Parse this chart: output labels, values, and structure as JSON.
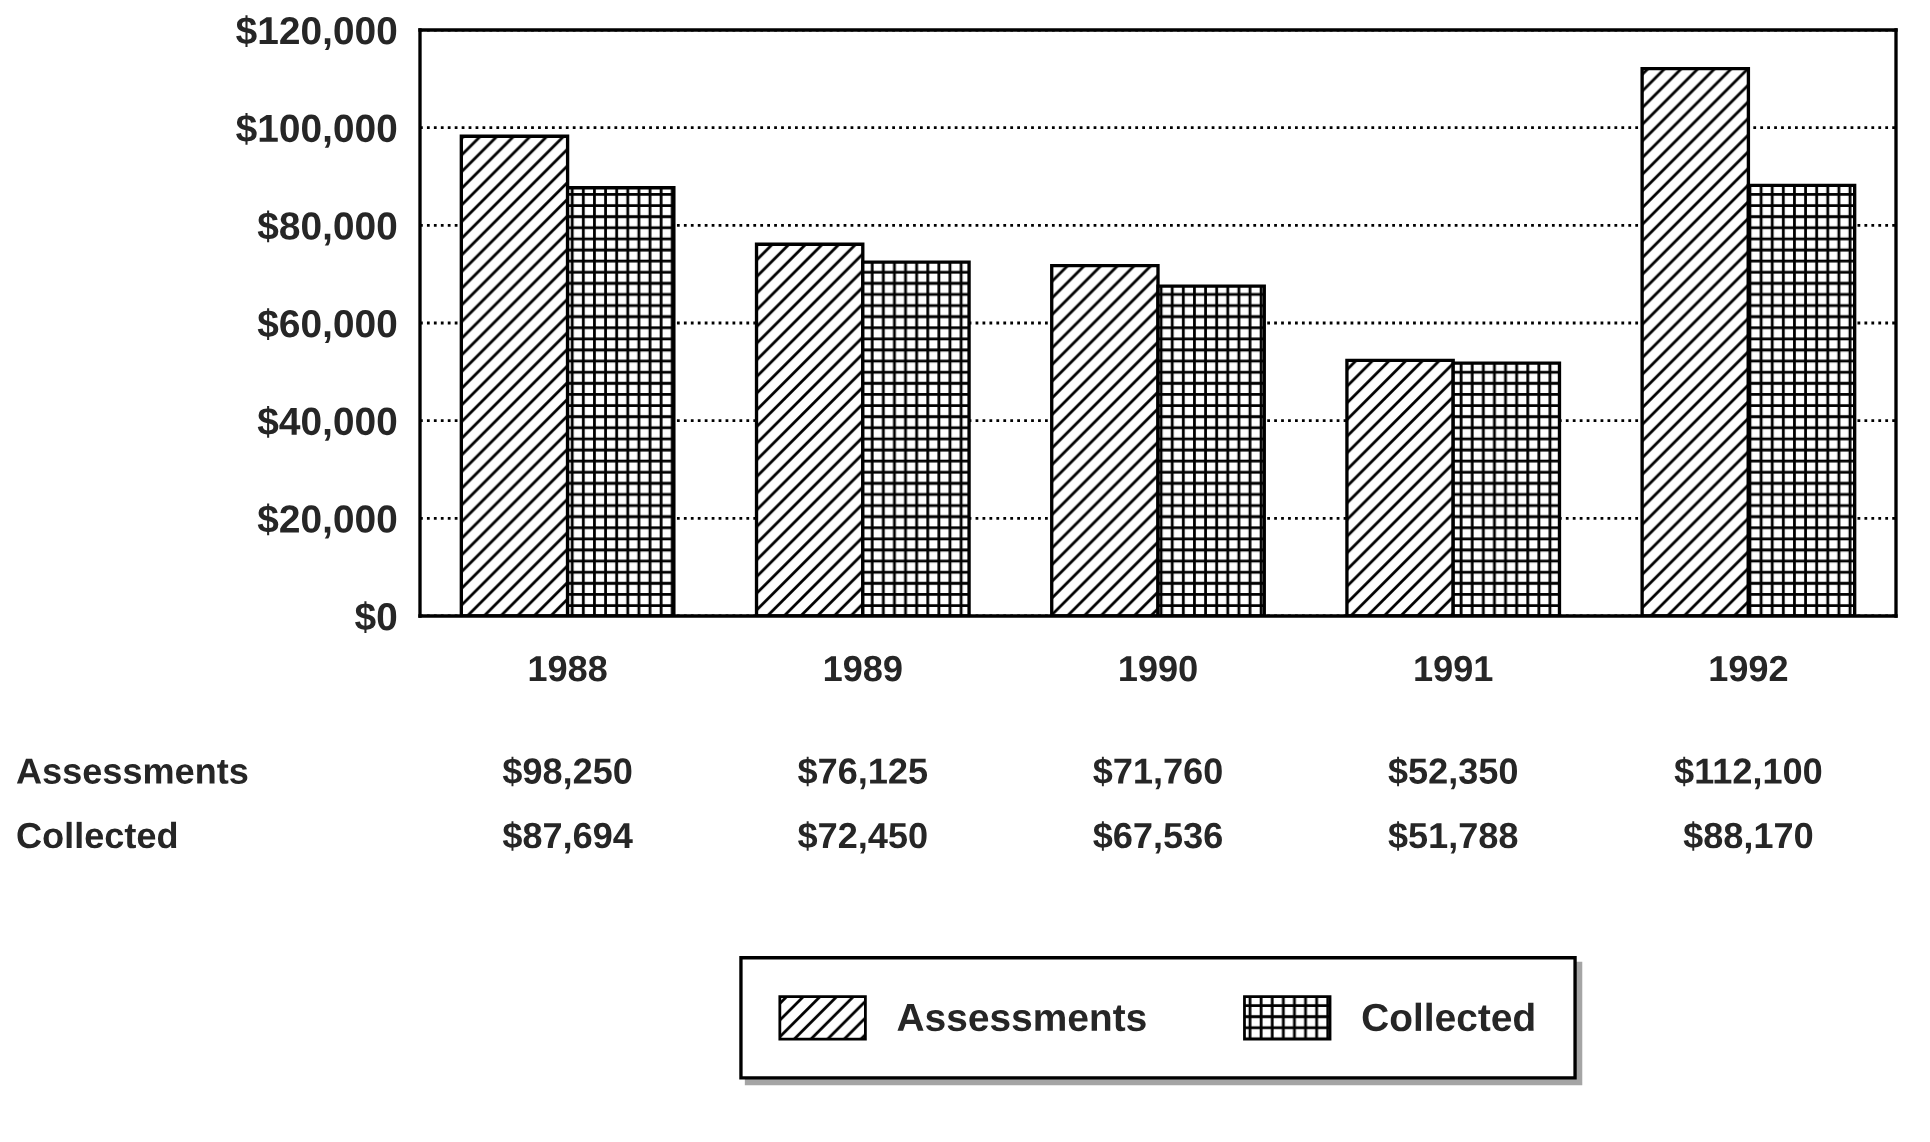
{
  "chart_data": {
    "type": "bar",
    "categories": [
      "1988",
      "1989",
      "1990",
      "1991",
      "1992"
    ],
    "series": [
      {
        "name": "Assessments",
        "color": "#000000",
        "values": [
          98250,
          76125,
          71760,
          52350,
          112100
        ],
        "value_labels": [
          "$98,250",
          "$76,125",
          "$71,760",
          "$52,350",
          "$112,100"
        ]
      },
      {
        "name": "Collected",
        "color": "#000000",
        "values": [
          87694,
          72450,
          67536,
          51788,
          88170
        ],
        "value_labels": [
          "$87,694",
          "$72,450",
          "$67,536",
          "$51,788",
          "$88,170"
        ]
      }
    ],
    "ylim": [
      0,
      120000
    ],
    "yticks": [
      {
        "value": 0,
        "label": "$0"
      },
      {
        "value": 20000,
        "label": "$20,000"
      },
      {
        "value": 40000,
        "label": "$40,000"
      },
      {
        "value": 60000,
        "label": "$60,000"
      },
      {
        "value": 80000,
        "label": "$80,000"
      },
      {
        "value": 100000,
        "label": "$100,000"
      },
      {
        "value": 120000,
        "label": "$120,000"
      }
    ],
    "grid": "y",
    "legend": "bottom"
  }
}
